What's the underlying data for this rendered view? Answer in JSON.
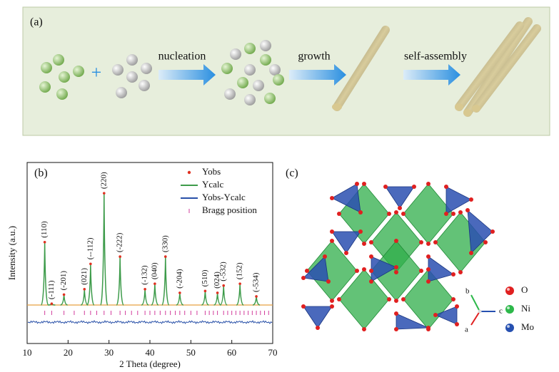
{
  "panel_a": {
    "label": "(a)",
    "plus": "+",
    "steps": [
      "nucleation",
      "growth",
      "self-assembly"
    ]
  },
  "chart_data": {
    "type": "xrd",
    "label": "(b)",
    "xlabel": "2 Theta (degree)",
    "ylabel": "Intensity (a.u.)",
    "xlim": [
      10,
      70
    ],
    "xticks": [
      10,
      20,
      30,
      40,
      50,
      60,
      70
    ],
    "ylim": [
      0,
      100
    ],
    "series": [
      {
        "name": "Yobs",
        "color": "#e03020"
      },
      {
        "name": "Ycalc",
        "color": "#3d9b4a"
      },
      {
        "name": "Yobs-Ycalc",
        "color": "#2850a8"
      },
      {
        "name": "Bragg position",
        "color": "#d23c9c"
      }
    ],
    "peaks": [
      {
        "label": "(110)",
        "x": 14.3,
        "height": 56
      },
      {
        "label": "(-111)",
        "x": 16.0,
        "height": 22
      },
      {
        "label": "(-201)",
        "x": 19.0,
        "height": 27
      },
      {
        "label": "(021)",
        "x": 24.0,
        "height": 30
      },
      {
        "label": "(--112)",
        "x": 25.5,
        "height": 44
      },
      {
        "label": "(220)",
        "x": 28.8,
        "height": 83
      },
      {
        "label": "(-222)",
        "x": 32.7,
        "height": 48
      },
      {
        "label": "(-132)",
        "x": 38.8,
        "height": 30
      },
      {
        "label": "(040)",
        "x": 41.2,
        "height": 33
      },
      {
        "label": "(330)",
        "x": 43.8,
        "height": 48
      },
      {
        "label": "(-204)",
        "x": 47.3,
        "height": 28
      },
      {
        "label": "(510)",
        "x": 53.5,
        "height": 29
      },
      {
        "label": "(024)",
        "x": 56.5,
        "height": 28
      },
      {
        "label": "(-532)",
        "x": 58.0,
        "height": 32
      },
      {
        "label": "(152)",
        "x": 62.0,
        "height": 33
      },
      {
        "label": "(-534)",
        "x": 66.0,
        "height": 26
      }
    ],
    "bragg_positions": [
      14.3,
      16.0,
      19.0,
      21.5,
      24.0,
      25.5,
      27.0,
      28.8,
      30.5,
      32.7,
      34.0,
      35.5,
      37.0,
      38.8,
      40.0,
      41.2,
      42.5,
      43.8,
      45.0,
      46.2,
      47.3,
      48.5,
      50.0,
      51.5,
      53.5,
      54.5,
      55.5,
      56.5,
      58.0,
      59.0,
      60.0,
      61.0,
      62.0,
      63.0,
      64.0,
      65.0,
      66.0,
      67.0,
      68.0,
      69.0
    ]
  },
  "panel_c": {
    "label": "(c)",
    "legend": [
      {
        "name": "O",
        "color": "#e02020"
      },
      {
        "name": "Ni",
        "color": "#2db84a"
      },
      {
        "name": "Mo",
        "color": "#2650b0"
      }
    ],
    "axes": [
      "a",
      "b",
      "c"
    ]
  }
}
